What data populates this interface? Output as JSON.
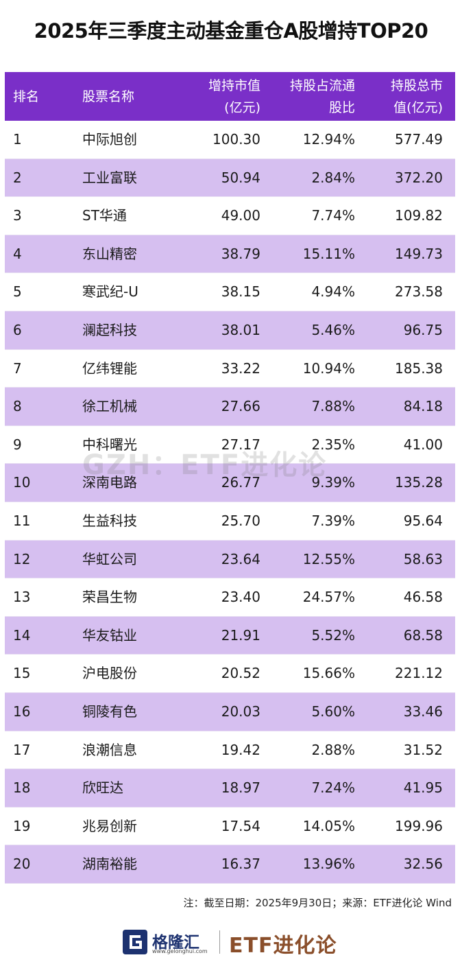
{
  "title": "2025年三季度主动基金重仓A股增持TOP20",
  "header": {
    "rank": "排名",
    "name": "股票名称",
    "increase_line1": "增持市值",
    "increase_line2": "(亿元)",
    "ratio_line1": "持股占流通",
    "ratio_line2": "股比",
    "total_line1": "持股总市",
    "total_line2": "值(亿元)"
  },
  "rows": [
    {
      "rank": "1",
      "name": "中际旭创",
      "increase": "100.30",
      "ratio": "12.94%",
      "total": "577.49"
    },
    {
      "rank": "2",
      "name": "工业富联",
      "increase": "50.94",
      "ratio": "2.84%",
      "total": "372.20"
    },
    {
      "rank": "3",
      "name": "ST华通",
      "increase": "49.00",
      "ratio": "7.74%",
      "total": "109.82"
    },
    {
      "rank": "4",
      "name": "东山精密",
      "increase": "38.79",
      "ratio": "15.11%",
      "total": "149.73"
    },
    {
      "rank": "5",
      "name": "寒武纪-U",
      "increase": "38.15",
      "ratio": "4.94%",
      "total": "273.58"
    },
    {
      "rank": "6",
      "name": "澜起科技",
      "increase": "38.01",
      "ratio": "5.46%",
      "total": "96.75"
    },
    {
      "rank": "7",
      "name": "亿纬锂能",
      "increase": "33.22",
      "ratio": "10.94%",
      "total": "185.38"
    },
    {
      "rank": "8",
      "name": "徐工机械",
      "increase": "27.66",
      "ratio": "7.88%",
      "total": "84.18"
    },
    {
      "rank": "9",
      "name": "中科曙光",
      "increase": "27.17",
      "ratio": "2.35%",
      "total": "41.00"
    },
    {
      "rank": "10",
      "name": "深南电路",
      "increase": "26.77",
      "ratio": "9.39%",
      "total": "135.28"
    },
    {
      "rank": "11",
      "name": "生益科技",
      "increase": "25.70",
      "ratio": "7.39%",
      "total": "95.64"
    },
    {
      "rank": "12",
      "name": "华虹公司",
      "increase": "23.64",
      "ratio": "12.55%",
      "total": "58.63"
    },
    {
      "rank": "13",
      "name": "荣昌生物",
      "increase": "23.40",
      "ratio": "24.57%",
      "total": "46.58"
    },
    {
      "rank": "14",
      "name": "华友钴业",
      "increase": "21.91",
      "ratio": "5.52%",
      "total": "68.58"
    },
    {
      "rank": "15",
      "name": "沪电股份",
      "increase": "20.52",
      "ratio": "15.66%",
      "total": "221.12"
    },
    {
      "rank": "16",
      "name": "铜陵有色",
      "increase": "20.03",
      "ratio": "5.60%",
      "total": "33.46"
    },
    {
      "rank": "17",
      "name": "浪潮信息",
      "increase": "19.42",
      "ratio": "2.88%",
      "total": "31.52"
    },
    {
      "rank": "18",
      "name": "欣旺达",
      "increase": "18.97",
      "ratio": "7.24%",
      "total": "41.95"
    },
    {
      "rank": "19",
      "name": "兆易创新",
      "increase": "17.54",
      "ratio": "14.05%",
      "total": "199.96"
    },
    {
      "rank": "20",
      "name": "湖南裕能",
      "increase": "16.37",
      "ratio": "13.96%",
      "total": "32.56"
    }
  ],
  "watermark": "GZH：ETF进化论",
  "footnote": "注：截至日期：2025年9月30日；来源：ETF进化论 Wind",
  "logo": {
    "brand_cn": "格隆汇",
    "url": "www.gelonghui.com",
    "etf_brand": "ETF进化论"
  },
  "colors": {
    "header_bg": "#7a2fc8",
    "alt_row_bg": "#d6bff0",
    "etf_brand": "#8a4e2a",
    "gelonghui_blue": "#1d3270"
  }
}
